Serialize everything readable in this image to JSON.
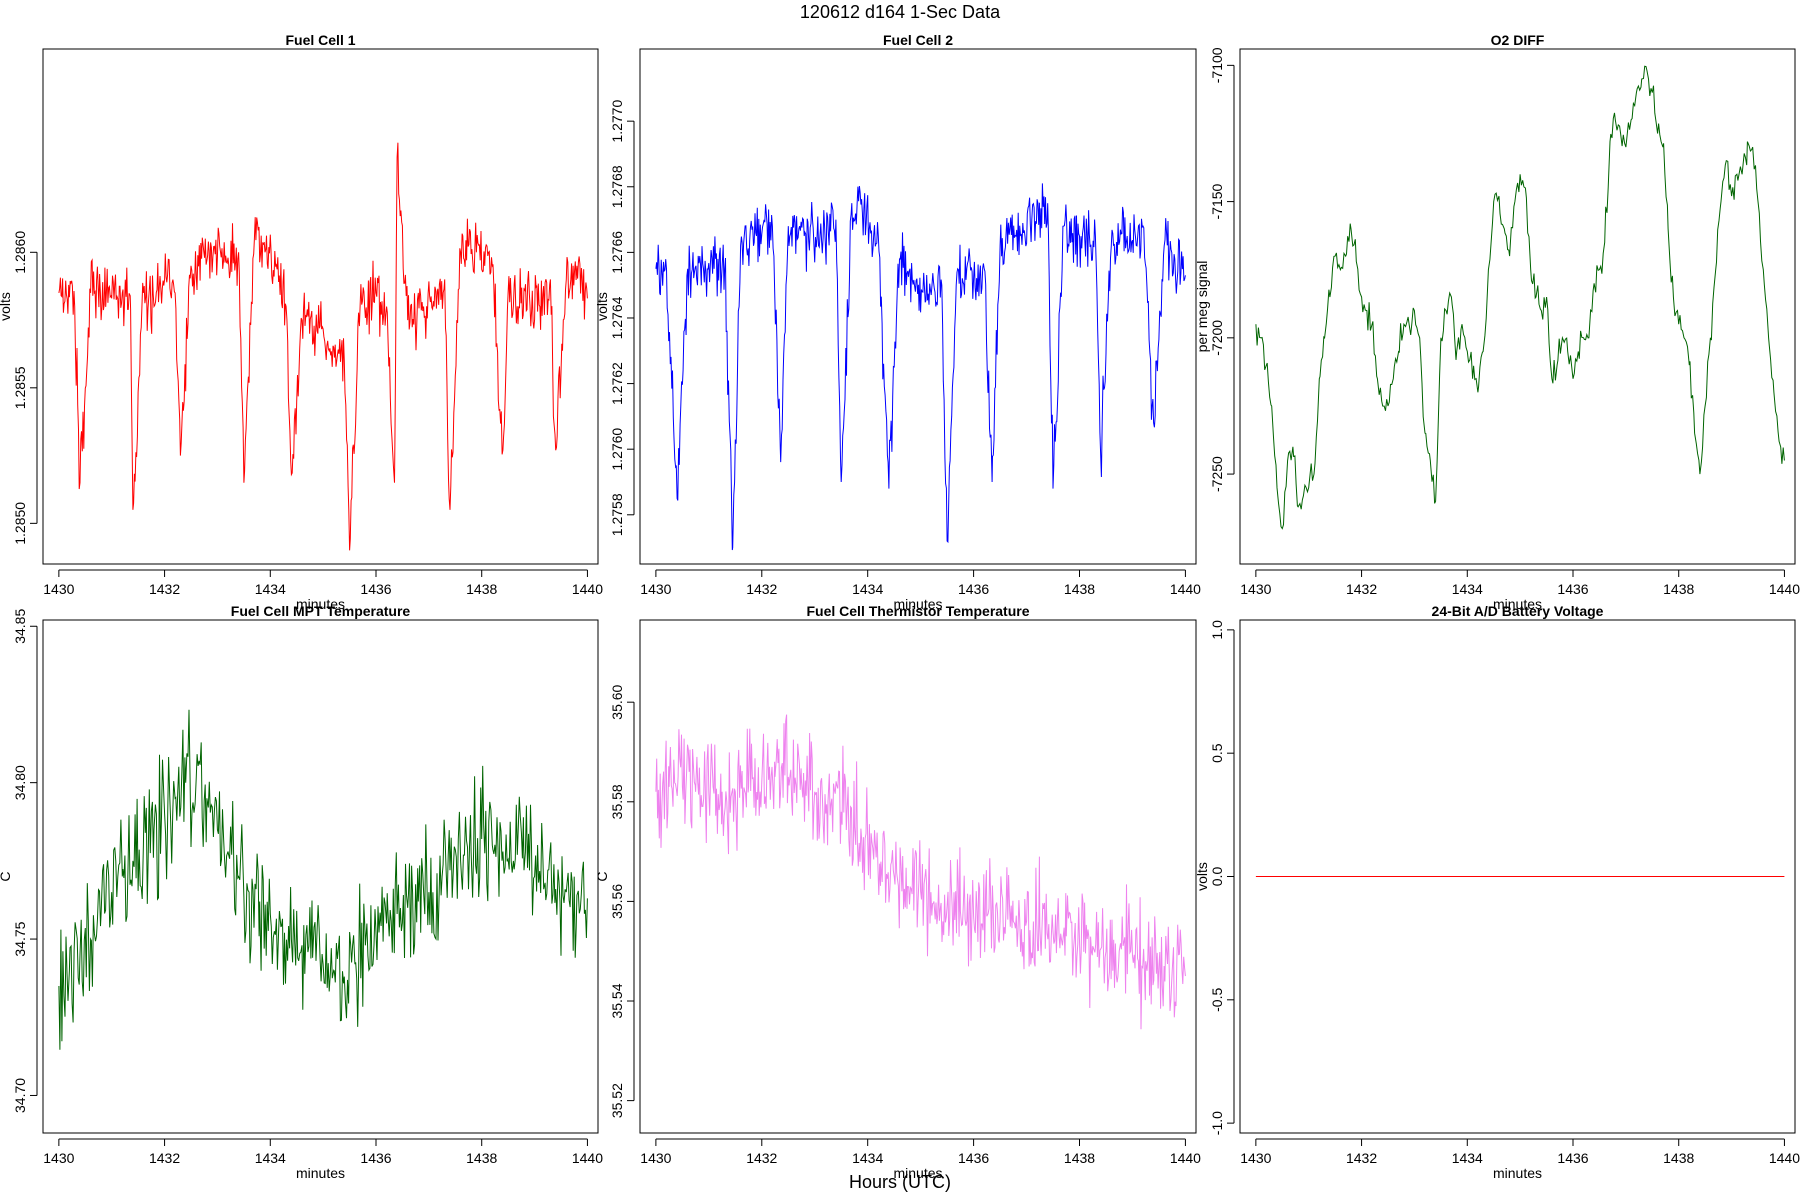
{
  "figure": {
    "title": "120612   d164   1-Sec Data",
    "x_outer_label": "Hours (UTC)"
  },
  "chart_data": [
    {
      "type": "line",
      "title": "Fuel Cell 1",
      "xlabel": "minutes",
      "ylabel": "volts",
      "xlim": [
        1429.7,
        1440.2
      ],
      "ylim": [
        1.28485,
        1.28675
      ],
      "x_ticks": [
        1430,
        1432,
        1434,
        1436,
        1438,
        1440
      ],
      "x_tick_labels": [
        "1430",
        "1432",
        "1434",
        "1436",
        "1438",
        "1440"
      ],
      "y_ticks": [
        1.285,
        1.2855,
        1.286
      ],
      "y_tick_labels": [
        "1.2850",
        "1.2855",
        "1.2860"
      ],
      "color": "#ff0000",
      "series": [
        {
          "x": [
            1430.0,
            1430.3,
            1430.4,
            1430.6,
            1430.9,
            1431.0,
            1431.2,
            1431.35,
            1431.4,
            1431.6,
            1431.8,
            1432.0,
            1432.2,
            1432.3,
            1432.5,
            1432.8,
            1433.0,
            1433.2,
            1433.4,
            1433.5,
            1433.7,
            1433.9,
            1434.1,
            1434.3,
            1434.4,
            1434.6,
            1434.9,
            1435.2,
            1435.4,
            1435.5,
            1435.7,
            1436.0,
            1436.2,
            1436.35,
            1436.4,
            1436.6,
            1436.9,
            1437.1,
            1437.3,
            1437.4,
            1437.6,
            1437.9,
            1438.2,
            1438.4,
            1438.5,
            1438.7,
            1438.9,
            1439.1,
            1439.3,
            1439.4,
            1439.6,
            1439.8,
            1440.0
          ],
          "y": [
            1.28585,
            1.2858,
            1.28515,
            1.28585,
            1.28585,
            1.28583,
            1.28585,
            1.28584,
            1.28505,
            1.28585,
            1.2858,
            1.2859,
            1.28585,
            1.28525,
            1.28595,
            1.28597,
            1.28598,
            1.28598,
            1.286,
            1.28515,
            1.28605,
            1.286,
            1.28595,
            1.2858,
            1.28518,
            1.28575,
            1.2857,
            1.28565,
            1.2856,
            1.2849,
            1.2858,
            1.28585,
            1.2858,
            1.28515,
            1.28635,
            1.28575,
            1.2858,
            1.2858,
            1.2859,
            1.28505,
            1.286,
            1.286,
            1.28595,
            1.28527,
            1.28585,
            1.2858,
            1.28585,
            1.2858,
            1.2859,
            1.28527,
            1.2859,
            1.28595,
            1.28583
          ]
        }
      ]
    },
    {
      "type": "line",
      "title": "Fuel Cell 2",
      "xlabel": "minutes",
      "ylabel": "volts",
      "xlim": [
        1429.7,
        1440.2
      ],
      "ylim": [
        1.27565,
        1.27722
      ],
      "x_ticks": [
        1430,
        1432,
        1434,
        1436,
        1438,
        1440
      ],
      "x_tick_labels": [
        "1430",
        "1432",
        "1434",
        "1436",
        "1438",
        "1440"
      ],
      "y_ticks": [
        1.2758,
        1.276,
        1.2762,
        1.2764,
        1.2766,
        1.2768,
        1.277
      ],
      "y_tick_labels": [
        "1.2758",
        "1.2760",
        "1.2762",
        "1.2764",
        "1.2766",
        "1.2768",
        "1.2770"
      ],
      "color": "#0000ff",
      "series": [
        {
          "x": [
            1430.0,
            1430.2,
            1430.4,
            1430.6,
            1430.9,
            1431.1,
            1431.3,
            1431.45,
            1431.6,
            1431.9,
            1432.2,
            1432.35,
            1432.5,
            1432.8,
            1433.1,
            1433.4,
            1433.5,
            1433.7,
            1433.9,
            1434.2,
            1434.4,
            1434.6,
            1434.9,
            1435.2,
            1435.4,
            1435.5,
            1435.7,
            1436.0,
            1436.2,
            1436.35,
            1436.5,
            1436.8,
            1437.1,
            1437.4,
            1437.5,
            1437.7,
            1438.0,
            1438.3,
            1438.4,
            1438.6,
            1438.9,
            1439.2,
            1439.4,
            1439.6,
            1439.8,
            1440.0
          ],
          "y": [
            1.27655,
            1.27655,
            1.27585,
            1.27655,
            1.27655,
            1.27655,
            1.27655,
            1.2757,
            1.27662,
            1.27665,
            1.27668,
            1.276,
            1.27668,
            1.27665,
            1.27665,
            1.2767,
            1.2759,
            1.27675,
            1.27672,
            1.27665,
            1.27588,
            1.27658,
            1.27648,
            1.27647,
            1.2765,
            1.27572,
            1.27655,
            1.27652,
            1.27655,
            1.2759,
            1.27662,
            1.27665,
            1.2767,
            1.27675,
            1.27588,
            1.27668,
            1.27665,
            1.27665,
            1.27598,
            1.27662,
            1.27665,
            1.27668,
            1.27608,
            1.27662,
            1.27658,
            1.27653
          ]
        }
      ]
    },
    {
      "type": "line",
      "title": "O2 DIFF",
      "xlabel": "minutes",
      "ylabel": "per meg signal",
      "xlim": [
        1429.7,
        1440.2
      ],
      "ylim": [
        -7283,
        -7094
      ],
      "x_ticks": [
        1430,
        1432,
        1434,
        1436,
        1438,
        1440
      ],
      "x_tick_labels": [
        "1430",
        "1432",
        "1434",
        "1436",
        "1438",
        "1440"
      ],
      "y_ticks": [
        -7250,
        -7200,
        -7150,
        -7100
      ],
      "y_tick_labels": [
        "-7250",
        "-7200",
        "-7150",
        "-7100"
      ],
      "color": "#006400",
      "series": [
        {
          "x": [
            1430.0,
            1430.1,
            1430.2,
            1430.3,
            1430.4,
            1430.5,
            1430.6,
            1430.7,
            1430.8,
            1430.9,
            1431.0,
            1431.1,
            1431.2,
            1431.3,
            1431.4,
            1431.5,
            1431.6,
            1431.7,
            1431.8,
            1431.9,
            1432.0,
            1432.1,
            1432.2,
            1432.3,
            1432.4,
            1432.5,
            1432.6,
            1432.7,
            1432.8,
            1432.9,
            1433.0,
            1433.1,
            1433.2,
            1433.3,
            1433.4,
            1433.5,
            1433.6,
            1433.7,
            1433.8,
            1433.9,
            1434.0,
            1434.1,
            1434.2,
            1434.3,
            1434.4,
            1434.5,
            1434.6,
            1434.7,
            1434.8,
            1434.9,
            1435.0,
            1435.1,
            1435.2,
            1435.3,
            1435.4,
            1435.5,
            1435.6,
            1435.7,
            1435.8,
            1435.9,
            1436.0,
            1436.1,
            1436.2,
            1436.3,
            1436.4,
            1436.5,
            1436.6,
            1436.7,
            1436.8,
            1436.9,
            1437.0,
            1437.1,
            1437.2,
            1437.3,
            1437.4,
            1437.5,
            1437.6,
            1437.7,
            1437.8,
            1437.9,
            1438.0,
            1438.1,
            1438.2,
            1438.3,
            1438.4,
            1438.5,
            1438.6,
            1438.7,
            1438.8,
            1438.9,
            1439.0,
            1439.1,
            1439.2,
            1439.3,
            1439.4,
            1439.5,
            1439.6,
            1439.7,
            1439.8,
            1439.9,
            1440.0
          ],
          "y": [
            -7195,
            -7200,
            -7210,
            -7225,
            -7255,
            -7270,
            -7245,
            -7240,
            -7262,
            -7258,
            -7255,
            -7250,
            -7215,
            -7200,
            -7185,
            -7170,
            -7175,
            -7170,
            -7160,
            -7172,
            -7185,
            -7190,
            -7195,
            -7215,
            -7225,
            -7225,
            -7215,
            -7205,
            -7195,
            -7195,
            -7190,
            -7200,
            -7235,
            -7245,
            -7260,
            -7200,
            -7190,
            -7185,
            -7205,
            -7195,
            -7205,
            -7215,
            -7220,
            -7205,
            -7175,
            -7150,
            -7148,
            -7160,
            -7170,
            -7150,
            -7140,
            -7145,
            -7175,
            -7185,
            -7190,
            -7185,
            -7215,
            -7210,
            -7200,
            -7205,
            -7215,
            -7205,
            -7200,
            -7200,
            -7180,
            -7175,
            -7165,
            -7128,
            -7120,
            -7125,
            -7130,
            -7120,
            -7110,
            -7105,
            -7102,
            -7110,
            -7125,
            -7130,
            -7160,
            -7185,
            -7195,
            -7200,
            -7210,
            -7235,
            -7250,
            -7225,
            -7200,
            -7175,
            -7150,
            -7135,
            -7148,
            -7140,
            -7140,
            -7128,
            -7130,
            -7150,
            -7175,
            -7200,
            -7220,
            -7238,
            -7245
          ]
        }
      ]
    },
    {
      "type": "line",
      "title": "Fuel Cell MPT Temperature",
      "xlabel": "minutes",
      "ylabel": "C",
      "xlim": [
        1429.7,
        1440.2
      ],
      "ylim": [
        34.688,
        34.852
      ],
      "x_ticks": [
        1430,
        1432,
        1434,
        1436,
        1438,
        1440
      ],
      "x_tick_labels": [
        "1430",
        "1432",
        "1434",
        "1436",
        "1438",
        "1440"
      ],
      "y_ticks": [
        34.7,
        34.75,
        34.8,
        34.85
      ],
      "y_tick_labels": [
        "34.70",
        "34.75",
        "34.80",
        "34.85"
      ],
      "color": "#006400",
      "series": [
        {
          "x": [
            1430.0,
            1430.2,
            1430.4,
            1430.6,
            1430.8,
            1431.0,
            1431.2,
            1431.4,
            1431.6,
            1431.8,
            1432.0,
            1432.2,
            1432.4,
            1432.6,
            1432.8,
            1433.0,
            1433.2,
            1433.4,
            1433.6,
            1433.8,
            1434.0,
            1434.2,
            1434.4,
            1434.6,
            1434.8,
            1435.0,
            1435.2,
            1435.4,
            1435.6,
            1435.8,
            1436.0,
            1436.2,
            1436.4,
            1436.6,
            1436.8,
            1437.0,
            1437.2,
            1437.4,
            1437.6,
            1437.8,
            1438.0,
            1438.2,
            1438.4,
            1438.6,
            1438.8,
            1439.0,
            1439.2,
            1439.4,
            1439.6,
            1439.8,
            1440.0
          ],
          "y": [
            34.735,
            34.74,
            34.745,
            34.75,
            34.758,
            34.765,
            34.77,
            34.775,
            34.78,
            34.785,
            34.79,
            34.795,
            34.8,
            34.802,
            34.795,
            34.785,
            34.778,
            34.77,
            34.765,
            34.762,
            34.758,
            34.754,
            34.75,
            34.748,
            34.744,
            34.742,
            34.74,
            34.738,
            34.742,
            34.748,
            34.752,
            34.755,
            34.758,
            34.76,
            34.762,
            34.765,
            34.768,
            34.772,
            34.775,
            34.778,
            34.782,
            34.78,
            34.778,
            34.775,
            34.772,
            34.77,
            34.768,
            34.766,
            34.765,
            34.764,
            34.763
          ]
        }
      ]
    },
    {
      "type": "line",
      "title": "Fuel Cell Thermistor Temperature",
      "xlabel": "minutes",
      "ylabel": "C",
      "xlim": [
        1429.7,
        1440.2
      ],
      "ylim": [
        35.5135,
        35.6165
      ],
      "x_ticks": [
        1430,
        1432,
        1434,
        1436,
        1438,
        1440
      ],
      "x_tick_labels": [
        "1430",
        "1432",
        "1434",
        "1436",
        "1438",
        "1440"
      ],
      "y_ticks": [
        35.52,
        35.54,
        35.56,
        35.58,
        35.6
      ],
      "y_tick_labels": [
        "35.52",
        "35.54",
        "35.56",
        "35.58",
        "35.60"
      ],
      "color": "#ee82ee",
      "series": [
        {
          "x": [
            1430.0,
            1430.25,
            1430.5,
            1430.75,
            1431.0,
            1431.25,
            1431.5,
            1431.75,
            1432.0,
            1432.25,
            1432.5,
            1432.75,
            1433.0,
            1433.25,
            1433.5,
            1433.75,
            1434.0,
            1434.25,
            1434.5,
            1434.75,
            1435.0,
            1435.25,
            1435.5,
            1435.75,
            1436.0,
            1436.25,
            1436.5,
            1436.75,
            1437.0,
            1437.25,
            1437.5,
            1437.75,
            1438.0,
            1438.25,
            1438.5,
            1438.75,
            1439.0,
            1439.25,
            1439.5,
            1439.75,
            1440.0
          ],
          "y": [
            35.582,
            35.583,
            35.583,
            35.582,
            35.582,
            35.582,
            35.582,
            35.583,
            35.584,
            35.585,
            35.585,
            35.584,
            35.582,
            35.58,
            35.578,
            35.575,
            35.572,
            35.568,
            35.565,
            35.563,
            35.562,
            35.56,
            35.559,
            35.558,
            35.557,
            35.557,
            35.556,
            35.556,
            35.556,
            35.555,
            35.554,
            35.553,
            35.552,
            35.551,
            35.55,
            35.55,
            35.549,
            35.548,
            35.547,
            35.546,
            35.545
          ]
        }
      ]
    },
    {
      "type": "line",
      "title": "24-Bit A/D Battery Voltage",
      "xlabel": "minutes",
      "ylabel": "volts",
      "xlim": [
        1429.7,
        1440.2
      ],
      "ylim": [
        -1.04,
        1.04
      ],
      "x_ticks": [
        1430,
        1432,
        1434,
        1436,
        1438,
        1440
      ],
      "x_tick_labels": [
        "1430",
        "1432",
        "1434",
        "1436",
        "1438",
        "1440"
      ],
      "y_ticks": [
        -1.0,
        -0.5,
        0.0,
        0.5,
        1.0
      ],
      "y_tick_labels": [
        "-1.0",
        "-0.5",
        "0.0",
        "0.5",
        "1.0"
      ],
      "color": "#ff0000",
      "series": [
        {
          "x": [
            1430,
            1440
          ],
          "y": [
            0,
            0
          ]
        }
      ]
    }
  ]
}
